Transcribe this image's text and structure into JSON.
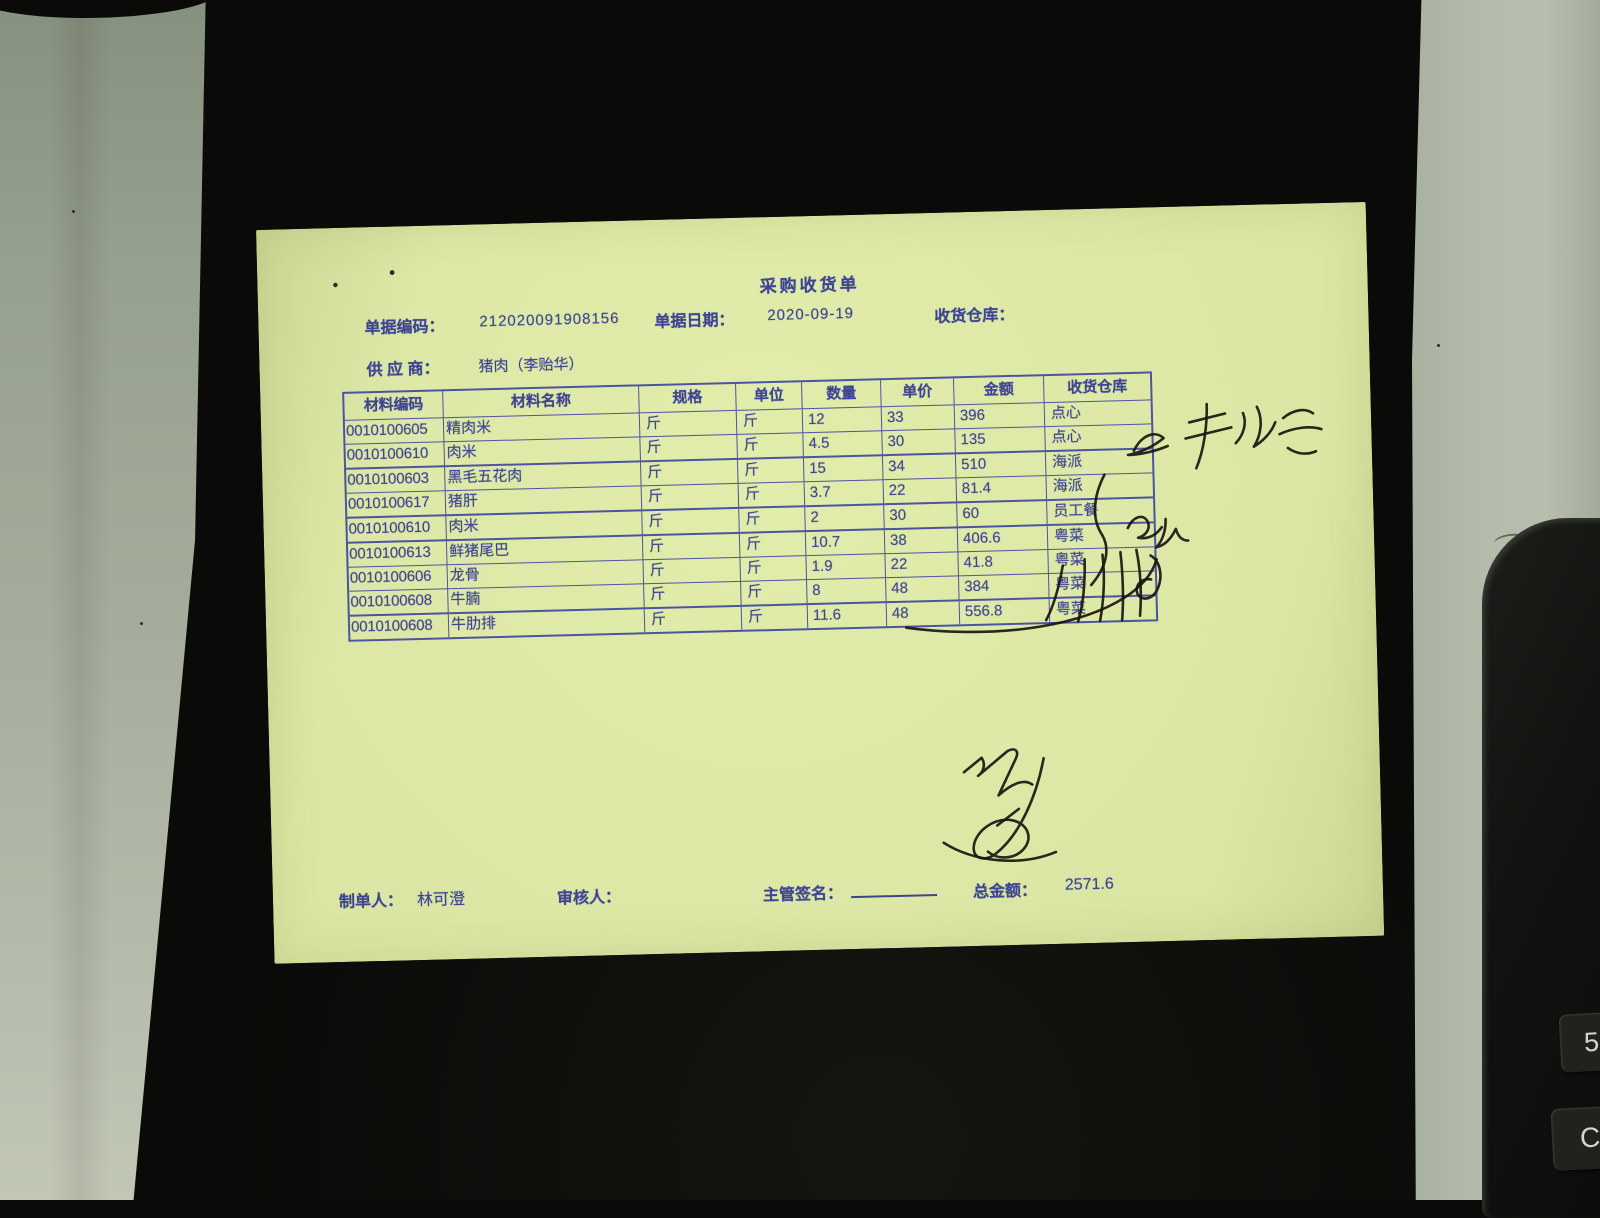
{
  "scene": {
    "background_color": "#0a0b08",
    "left_surface_color": "#9aa392",
    "right_surface_color": "#b2baa9",
    "calculator": {
      "keys": [
        "5",
        "C"
      ]
    }
  },
  "receipt": {
    "title": "采购收货单",
    "paper_color": "#dde8a6",
    "print_color": "#3d4593",
    "handwriting_color": "#17170f",
    "header": {
      "code_label": "单据编码：",
      "code_value": "212020091908156",
      "date_label": "单据日期：",
      "date_value": "2020-09-19",
      "warehouse_label": "收货仓库：",
      "supplier_label": "供 应 商：",
      "supplier_value": "猪肉（李贻华）"
    },
    "table": {
      "headers": [
        "材料编码",
        "材料名称",
        "规格",
        "单位",
        "数量",
        "单价",
        "金额",
        "收货仓库"
      ],
      "rows": [
        [
          "0010100605",
          "精肉米",
          "斤",
          "斤",
          "12",
          "33",
          "396",
          "点心"
        ],
        [
          "0010100610",
          "肉米",
          "斤",
          "斤",
          "4.5",
          "30",
          "135",
          "点心"
        ],
        [
          "0010100603",
          "黑毛五花肉",
          "斤",
          "斤",
          "15",
          "34",
          "510",
          "海派"
        ],
        [
          "0010100617",
          "猪肝",
          "斤",
          "斤",
          "3.7",
          "22",
          "81.4",
          "海派"
        ],
        [
          "0010100610",
          "肉米",
          "斤",
          "斤",
          "2",
          "30",
          "60",
          "员工餐"
        ],
        [
          "0010100613",
          "鲜猪尾巴",
          "斤",
          "斤",
          "10.7",
          "38",
          "406.6",
          "粤菜"
        ],
        [
          "0010100606",
          "龙骨",
          "斤",
          "斤",
          "1.9",
          "22",
          "41.8",
          "粤菜"
        ],
        [
          "0010100608",
          "牛腩",
          "斤",
          "斤",
          "8",
          "48",
          "384",
          "粤菜"
        ],
        [
          "0010100608",
          "牛肋排",
          "斤",
          "斤",
          "11.6",
          "48",
          "556.8",
          "粤菜"
        ]
      ]
    },
    "footer": {
      "preparer_label": "制单人：",
      "preparer_value": "林可澄",
      "auditor_label": "审核人：",
      "manager_label": "主管签名：",
      "total_label": "总金额：",
      "total_value": "2571.6"
    }
  }
}
